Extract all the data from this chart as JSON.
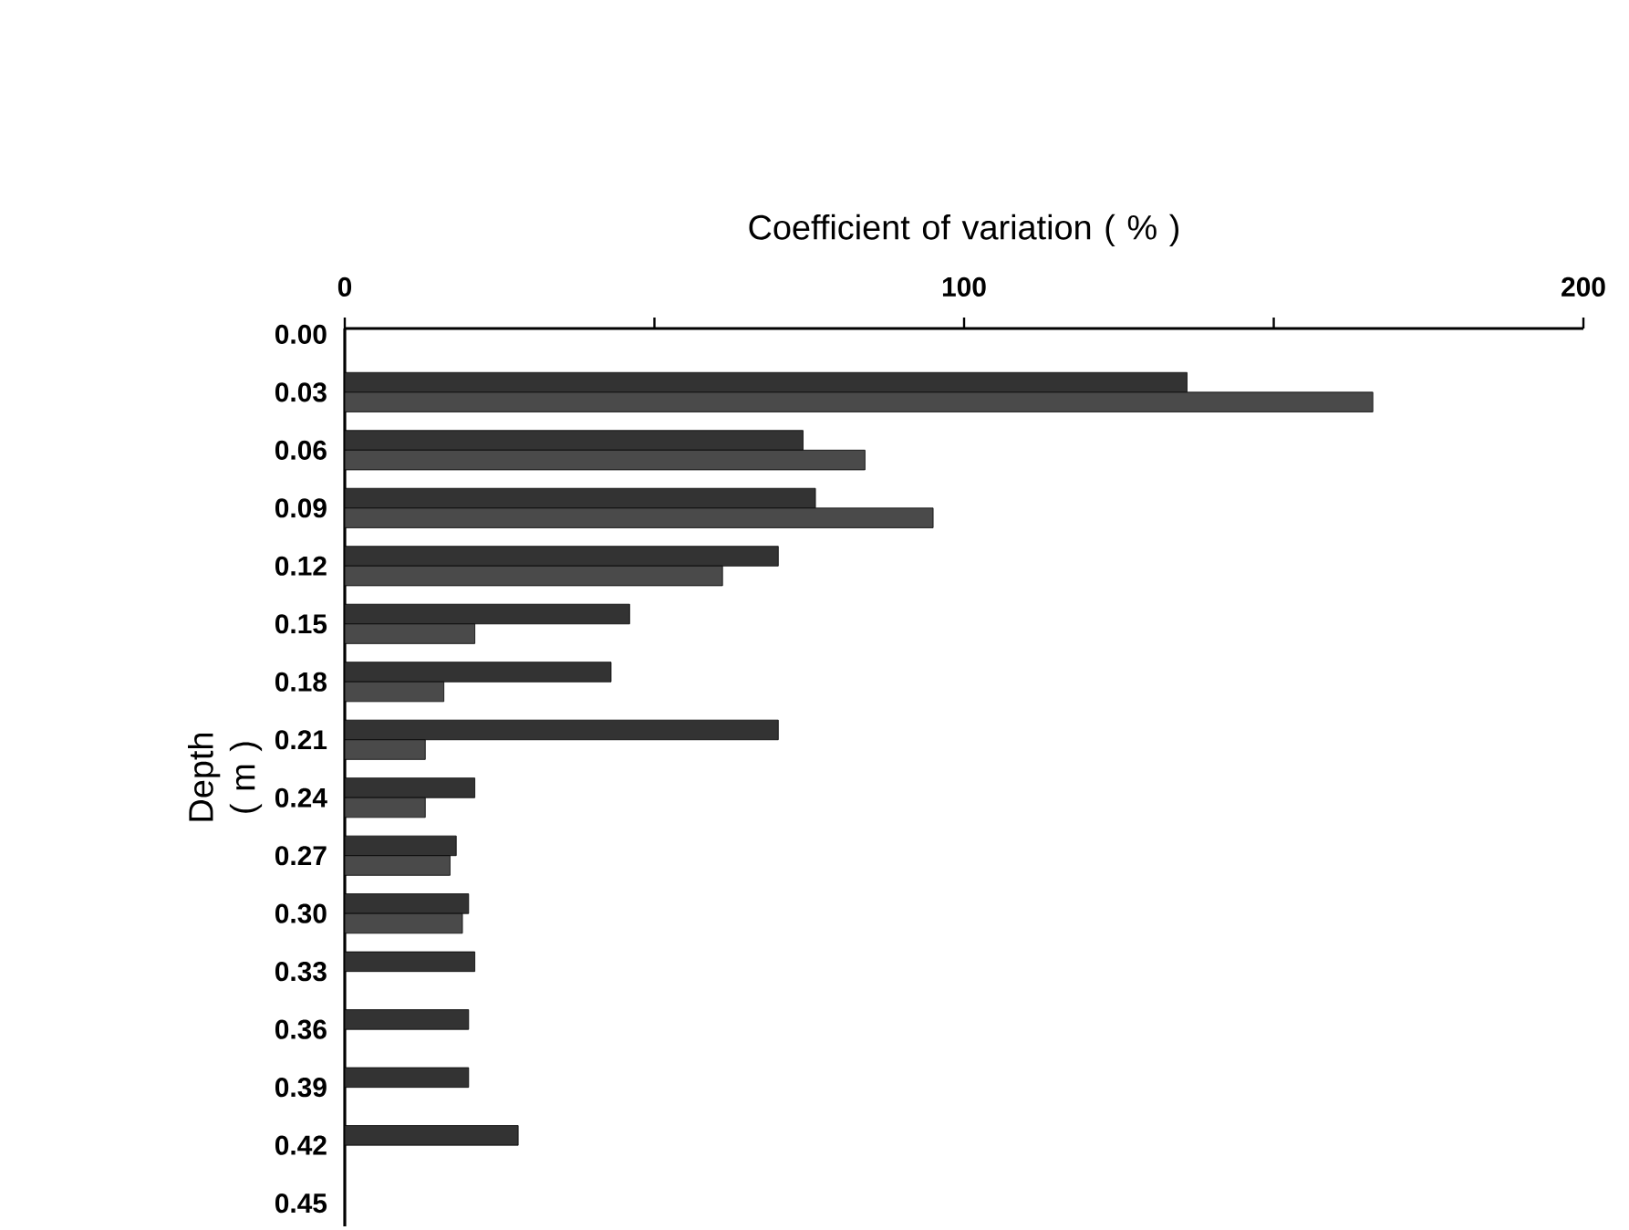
{
  "chart_data": {
    "type": "bar",
    "orientation": "horizontal",
    "xlabel": "Coefficient of variation ( % )",
    "ylabel": "Depth ( m )",
    "categories": [
      "0.00",
      "0.03",
      "0.06",
      "0.09",
      "0.12",
      "0.15",
      "0.18",
      "0.21",
      "0.24",
      "0.27",
      "0.30",
      "0.33",
      "0.36",
      "0.39",
      "0.42",
      "0.45"
    ],
    "series": [
      {
        "color": "#333333",
        "values": [
          null,
          136,
          74,
          76,
          70,
          46,
          43,
          70,
          21,
          18,
          20,
          21,
          20,
          20,
          28,
          null
        ]
      },
      {
        "color": "#4a4a4a",
        "values": [
          null,
          166,
          84,
          95,
          61,
          21,
          16,
          13,
          13,
          17,
          19,
          null,
          null,
          null,
          null,
          null
        ]
      }
    ],
    "xlim": [
      0,
      200
    ],
    "xticks": [
      0,
      {
        "value": 50,
        "label": null
      },
      100,
      {
        "value": 150,
        "label": null
      },
      200
    ],
    "grid": false
  }
}
